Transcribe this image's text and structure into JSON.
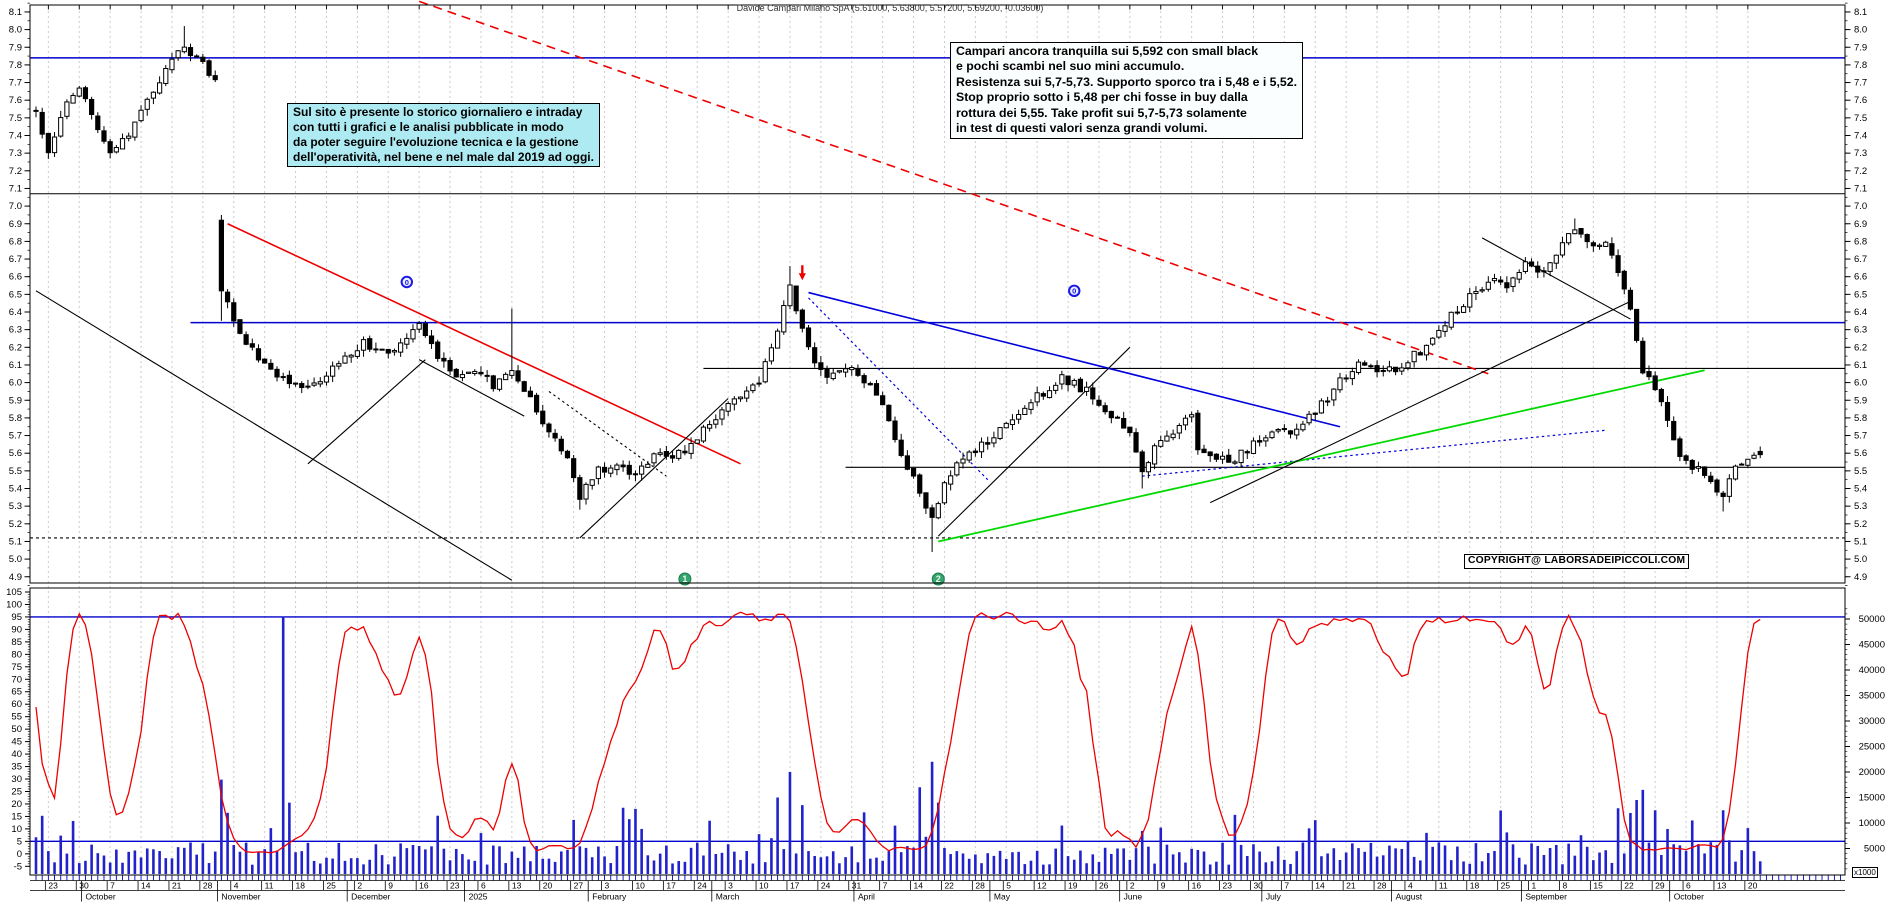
{
  "title": {
    "text": "Davide Campari Milano SpA (5.61000, 5.63800, 5.57200, 5.59200, -0.03600)"
  },
  "annotations": {
    "analysis_note": {
      "text": "Campari ancora tranquilla sui 5,592  con small black\ne pochi scambi nel suo mini accumulo.\nResistenza sui 5,7-5,73. Supporto  sporco tra i 5,48 e i 5,52.\nStop proprio sotto i 5,48 per chi fosse in buy dalla\nrottura dei 5,55. Take profit sui 5,7-5,73 solamente\nin test di questi valori senza grandi volumi."
    },
    "site_info": {
      "text": "Sul sito è presente lo storico giornaliero e intraday\ncon tutti i grafici e le analisi pubblicate in modo\nda poter seguire l'evoluzione tecnica e la gestione\ndell'operatività, nel bene e nel male dal 2019 ad oggi."
    },
    "copyright": {
      "text": "COPYRIGHT@ LABORSADEIPICCOLI.COM"
    },
    "volume_unit": "x1000"
  },
  "chart_data": {
    "type": "candlestick",
    "instrument": "Davide Campari Milano SpA",
    "last_ohlc": {
      "open": 5.61,
      "high": 5.638,
      "low": 5.572,
      "close": 5.592,
      "change": -0.036
    },
    "days": 280,
    "seed": 12,
    "price_axis": {
      "labels": [
        "8.1",
        "8.0",
        "7.9",
        "7.8",
        "7.7",
        "7.6",
        "7.5",
        "7.4",
        "7.3",
        "7.2",
        "7.1",
        "7.0",
        "6.9",
        "6.8",
        "6.7",
        "6.6",
        "6.5",
        "6.4",
        "6.3",
        "6.2",
        "6.1",
        "6.0",
        "5.9",
        "5.8",
        "5.7",
        "5.6",
        "5.5",
        "5.4",
        "5.3",
        "5.2",
        "5.1",
        "5.0",
        "4.9"
      ]
    },
    "oscillator_axis": {
      "labels": [
        "105",
        "100",
        "95",
        "90",
        "85",
        "80",
        "75",
        "70",
        "65",
        "60",
        "55",
        "50",
        "45",
        "40",
        "35",
        "30",
        "25",
        "20",
        "15",
        "10",
        "5",
        "0",
        "-5"
      ]
    },
    "volume_axis": {
      "labels": [
        "50000",
        "45000",
        "40000",
        "35000",
        "30000",
        "25000",
        "20000",
        "15000",
        "10000",
        "5000"
      ]
    },
    "x_axis": {
      "week_tick_days": [
        2,
        7,
        12,
        17,
        22,
        27,
        32,
        37,
        42,
        47,
        52,
        57,
        62,
        67,
        72,
        77,
        82,
        87,
        92,
        97,
        102,
        107,
        112,
        117,
        122,
        127,
        132,
        137,
        142,
        147,
        152,
        157,
        162,
        167,
        172,
        177,
        182,
        187,
        192,
        197,
        202,
        207,
        212,
        217,
        222,
        227,
        232,
        237,
        242,
        247,
        252,
        257,
        262,
        267,
        272,
        277
      ],
      "week_tick_labels": [
        "23",
        "30",
        "7",
        "14",
        "21",
        "28",
        "4",
        "11",
        "18",
        "25",
        "2",
        "9",
        "16",
        "23",
        "6",
        "13",
        "20",
        "27",
        "3",
        "10",
        "17",
        "24",
        "3",
        "10",
        "17",
        "24",
        "31",
        "7",
        "14",
        "22",
        "28",
        "5",
        "12",
        "19",
        "26",
        "2",
        "9",
        "16",
        "23",
        "30",
        "7",
        "14",
        "21",
        "28",
        "4",
        "11",
        "18",
        "25",
        "1",
        "8",
        "15",
        "22",
        "29",
        "6",
        "13",
        "20"
      ],
      "month_labels": [
        {
          "day": 8,
          "label": "October"
        },
        {
          "day": 30,
          "label": "November"
        },
        {
          "day": 51,
          "label": "December"
        },
        {
          "day": 70,
          "label": "2025"
        },
        {
          "day": 90,
          "label": "February"
        },
        {
          "day": 110,
          "label": "March"
        },
        {
          "day": 133,
          "label": "April"
        },
        {
          "day": 155,
          "label": "May"
        },
        {
          "day": 176,
          "label": "June"
        },
        {
          "day": 199,
          "label": "July"
        },
        {
          "day": 220,
          "label": "August"
        },
        {
          "day": 241,
          "label": "September"
        },
        {
          "day": 265,
          "label": "October"
        }
      ]
    },
    "price_waypoints": [
      [
        0,
        7.55
      ],
      [
        2,
        7.3
      ],
      [
        5,
        7.6
      ],
      [
        7,
        7.68
      ],
      [
        10,
        7.45
      ],
      [
        12,
        7.32
      ],
      [
        15,
        7.42
      ],
      [
        18,
        7.6
      ],
      [
        21,
        7.78
      ],
      [
        24,
        7.9
      ],
      [
        26,
        7.85
      ],
      [
        29,
        7.71
      ],
      [
        31,
        6.45
      ],
      [
        33,
        6.28
      ],
      [
        36,
        6.15
      ],
      [
        40,
        6.02
      ],
      [
        44,
        5.98
      ],
      [
        48,
        6.08
      ],
      [
        53,
        6.22
      ],
      [
        58,
        6.18
      ],
      [
        62,
        6.33
      ],
      [
        65,
        6.15
      ],
      [
        68,
        6.02
      ],
      [
        71,
        6.08
      ],
      [
        74,
        5.98
      ],
      [
        77,
        6.05
      ],
      [
        80,
        5.9
      ],
      [
        83,
        5.72
      ],
      [
        86,
        5.55
      ],
      [
        88,
        5.36
      ],
      [
        91,
        5.5
      ],
      [
        94,
        5.55
      ],
      [
        97,
        5.48
      ],
      [
        100,
        5.6
      ],
      [
        103,
        5.58
      ],
      [
        106,
        5.65
      ],
      [
        110,
        5.8
      ],
      [
        114,
        5.92
      ],
      [
        117,
        6.02
      ],
      [
        120,
        6.28
      ],
      [
        122,
        6.55
      ],
      [
        124,
        6.3
      ],
      [
        126,
        6.1
      ],
      [
        128,
        6.02
      ],
      [
        132,
        6.08
      ],
      [
        136,
        5.95
      ],
      [
        138,
        5.8
      ],
      [
        140,
        5.6
      ],
      [
        143,
        5.38
      ],
      [
        145,
        5.22
      ],
      [
        147,
        5.45
      ],
      [
        150,
        5.58
      ],
      [
        155,
        5.7
      ],
      [
        158,
        5.78
      ],
      [
        162,
        5.92
      ],
      [
        166,
        6.03
      ],
      [
        170,
        5.95
      ],
      [
        174,
        5.82
      ],
      [
        177,
        5.7
      ],
      [
        179,
        5.5
      ],
      [
        181,
        5.62
      ],
      [
        184,
        5.72
      ],
      [
        187,
        5.82
      ],
      [
        188,
        5.62
      ],
      [
        190,
        5.6
      ],
      [
        193,
        5.55
      ],
      [
        196,
        5.62
      ],
      [
        199,
        5.7
      ],
      [
        203,
        5.72
      ],
      [
        206,
        5.8
      ],
      [
        209,
        5.92
      ],
      [
        212,
        6.05
      ],
      [
        215,
        6.12
      ],
      [
        218,
        6.05
      ],
      [
        221,
        6.1
      ],
      [
        224,
        6.18
      ],
      [
        227,
        6.3
      ],
      [
        230,
        6.42
      ],
      [
        233,
        6.52
      ],
      [
        236,
        6.6
      ],
      [
        238,
        6.55
      ],
      [
        241,
        6.68
      ],
      [
        244,
        6.62
      ],
      [
        247,
        6.8
      ],
      [
        249,
        6.87
      ],
      [
        252,
        6.75
      ],
      [
        254,
        6.82
      ],
      [
        256,
        6.6
      ],
      [
        258,
        6.42
      ],
      [
        260,
        6.08
      ],
      [
        262,
        5.95
      ],
      [
        264,
        5.8
      ],
      [
        266,
        5.6
      ],
      [
        269,
        5.5
      ],
      [
        271,
        5.42
      ],
      [
        273,
        5.34
      ],
      [
        275,
        5.52
      ],
      [
        277,
        5.58
      ],
      [
        279,
        5.592
      ]
    ],
    "special_days": {
      "30": {
        "o": 6.92,
        "h": 6.95,
        "l": 6.35,
        "c": 6.52
      },
      "279": {
        "o": 5.61,
        "h": 5.638,
        "l": 5.572,
        "c": 5.592
      },
      "24": {
        "h": 8.02
      },
      "77": {
        "h": 6.42
      },
      "122": {
        "h": 6.66
      },
      "249": {
        "h": 6.93
      },
      "88": {
        "l": 5.28
      },
      "145": {
        "l": 5.04
      },
      "179": {
        "l": 5.4
      },
      "273": {
        "l": 5.27
      }
    },
    "price_lines": [
      {
        "price": 7.84,
        "color": "#0000cc",
        "from_day": -1,
        "dash": false
      },
      {
        "price": 6.34,
        "color": "#0000cc",
        "from_day": 25,
        "dash": false
      },
      {
        "price": 7.07,
        "color": "#000000",
        "from_day": -1,
        "dash": false
      },
      {
        "price": 6.08,
        "color": "#000000",
        "from_day": 108,
        "dash": false
      },
      {
        "price": 5.52,
        "color": "#000000",
        "from_day": 131,
        "dash": false
      },
      {
        "price": 5.12,
        "color": "#000000",
        "from_day": -1,
        "dash": true
      }
    ],
    "trend_lines": [
      {
        "d1": 62,
        "p1": 8.16,
        "d2": 235,
        "p2": 6.05,
        "color": "#ee0000",
        "dash": "big",
        "width": 1.6
      },
      {
        "d1": 31,
        "p1": 6.9,
        "d2": 114,
        "p2": 5.54,
        "color": "#ee0000",
        "dash": "no",
        "width": 1.6
      },
      {
        "d1": 125,
        "p1": 6.51,
        "d2": 211,
        "p2": 5.75,
        "color": "#0000dd",
        "dash": "no",
        "width": 1.6
      },
      {
        "d1": 125,
        "p1": 6.48,
        "d2": 154,
        "p2": 5.45,
        "color": "#0000dd",
        "dash": "small",
        "width": 1.2
      },
      {
        "d1": 179,
        "p1": 5.47,
        "d2": 254,
        "p2": 5.73,
        "color": "#0000dd",
        "dash": "small",
        "width": 1.2
      },
      {
        "d1": 146,
        "p1": 5.1,
        "d2": 270,
        "p2": 6.07,
        "color": "#00d900",
        "dash": "no",
        "width": 1.8
      },
      {
        "d1": 0,
        "p1": 6.52,
        "d2": 77,
        "p2": 4.88,
        "color": "#000000",
        "dash": "no",
        "width": 1.1
      },
      {
        "d1": 44,
        "p1": 5.54,
        "d2": 63,
        "p2": 6.13,
        "color": "#000000",
        "dash": "no",
        "width": 1.1
      },
      {
        "d1": 62,
        "p1": 6.13,
        "d2": 79,
        "p2": 5.81,
        "color": "#000000",
        "dash": "no",
        "width": 1.1
      },
      {
        "d1": 88,
        "p1": 5.12,
        "d2": 112,
        "p2": 5.91,
        "color": "#000000",
        "dash": "no",
        "width": 1.1
      },
      {
        "d1": 83,
        "p1": 5.95,
        "d2": 102,
        "p2": 5.47,
        "color": "#000000",
        "dash": "small",
        "width": 1.1
      },
      {
        "d1": 146,
        "p1": 5.13,
        "d2": 177,
        "p2": 6.2,
        "color": "#000000",
        "dash": "no",
        "width": 1.1
      },
      {
        "d1": 234,
        "p1": 6.82,
        "d2": 258,
        "p2": 6.36,
        "color": "#000000",
        "dash": "no",
        "width": 1.1
      },
      {
        "d1": 190,
        "p1": 5.32,
        "d2": 258,
        "p2": 6.46,
        "color": "#000000",
        "dash": "no",
        "width": 1.1
      }
    ],
    "markers": {
      "cycle_markers": [
        {
          "day": 60,
          "price": 6.57,
          "label": "0"
        },
        {
          "day": 168,
          "price": 6.52,
          "label": "0"
        }
      ],
      "sell_arrow": {
        "day": 124,
        "price": 6.58
      },
      "wave_markers": [
        {
          "day": 105,
          "label": "1"
        },
        {
          "day": 146,
          "label": "2"
        }
      ]
    },
    "oscillator": {
      "type": "stochastic",
      "period": 10,
      "smooth": 3,
      "level_lines": [
        95,
        5
      ]
    },
    "volume": {
      "base_min": 1800,
      "base_max": 6200,
      "spikes": [
        [
          30,
          18500
        ],
        [
          31,
          12000
        ],
        [
          38,
          9000
        ],
        [
          40,
          50500
        ],
        [
          41,
          14000
        ],
        [
          120,
          15000
        ],
        [
          122,
          20000
        ],
        [
          124,
          13500
        ],
        [
          143,
          17000
        ],
        [
          145,
          22000
        ],
        [
          146,
          14000
        ],
        [
          166,
          9500
        ],
        [
          259,
          14500
        ],
        [
          260,
          16500
        ],
        [
          262,
          12500
        ],
        [
          268,
          10500
        ],
        [
          273,
          12500
        ],
        [
          277,
          9000
        ]
      ]
    },
    "colors": {
      "candle_up": "#ffffff",
      "candle_down": "#000000",
      "candle_line": "#000000",
      "volume": "#2222cc",
      "oscillator": "#ee0000",
      "grid": "#cccccc",
      "level_blue": "#0000cc",
      "axis": "#000000",
      "daily_tick": "#0000cc",
      "wave_marker": "#33a56d",
      "cycle_marker": "#1a1ae6",
      "arrow": "#ee0000"
    }
  }
}
